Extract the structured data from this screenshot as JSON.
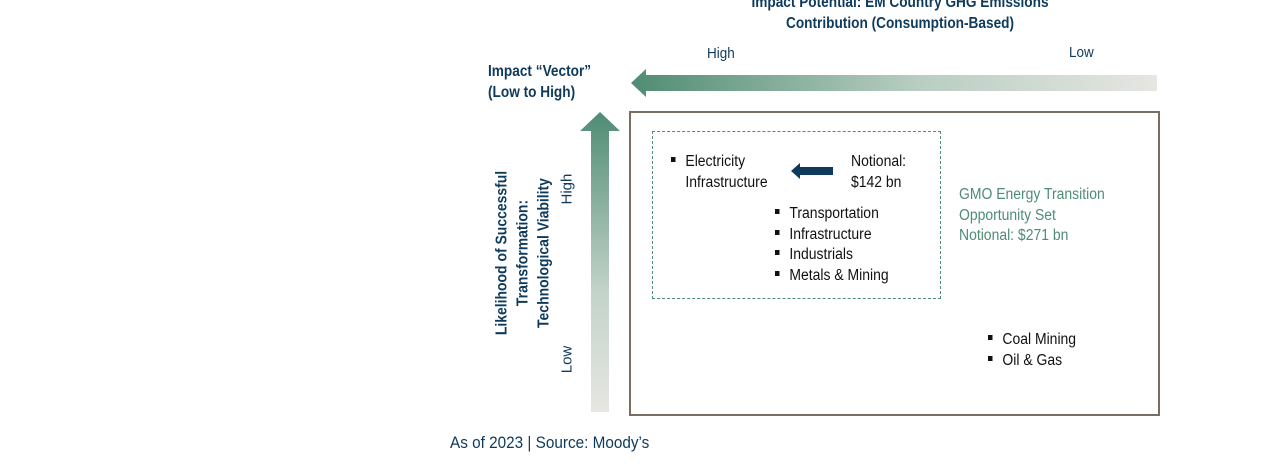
{
  "header": {
    "title_line1": "Impact Potential: EM Country GHG Emissions",
    "title_line2": "Contribution (Consumption-Based)",
    "vector_line1": "Impact “Vector”",
    "vector_line2": "(Low to High)"
  },
  "x_axis": {
    "high_label": "High",
    "low_label": "Low"
  },
  "y_axis": {
    "title_line1": "Likelihood of Successful Transformation:",
    "title_line2": "Technological Viability",
    "high_label": "High",
    "low_label": "Low"
  },
  "inner_box": {
    "electricity": [
      "Electricity",
      "Infrastructure"
    ],
    "notional_line1": "Notional:",
    "notional_line2": "$142 bn",
    "items": [
      "Transportation",
      "Infrastructure",
      "Industrials",
      "Metals & Mining"
    ]
  },
  "opportunity_set": {
    "line1": "GMO Energy Transition",
    "line2": "Opportunity Set",
    "line3": "Notional: $271 bn"
  },
  "outer_items": [
    "Coal Mining",
    "Oil & Gas"
  ],
  "footer": {
    "source": "As of 2023 | Source: Moody’s"
  },
  "colors": {
    "navy": "#0e3a5b",
    "green": "#4f8c73",
    "box_border": "#7a6e62",
    "arrow_fade": "#e6e6e2"
  }
}
